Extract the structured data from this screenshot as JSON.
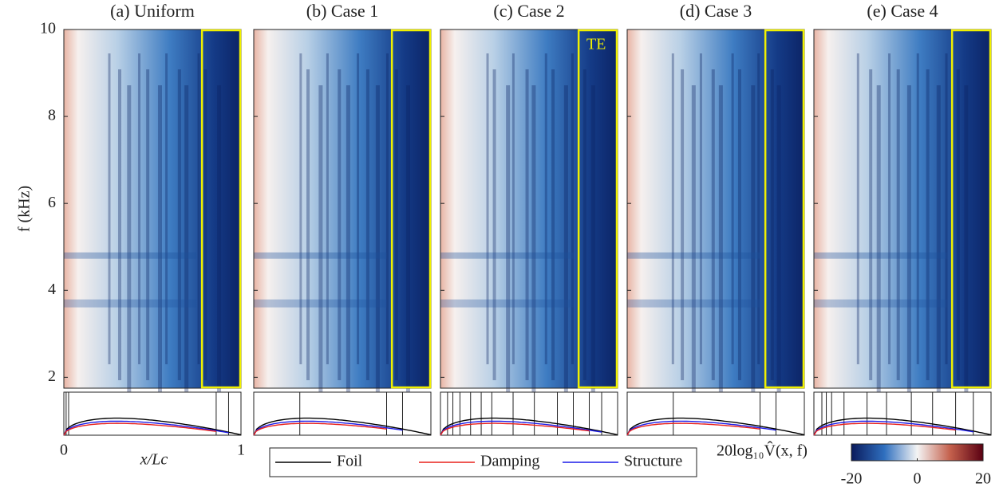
{
  "chart_data": {
    "type": "heatmap",
    "y_label": "f (kHz)",
    "x_label": "x/Lc",
    "xlim": [
      0,
      1
    ],
    "xticks": [
      0,
      1
    ],
    "ylim": [
      1.75,
      10
    ],
    "yticks": [
      2,
      4,
      6,
      8,
      10
    ],
    "te_region": [
      0.78,
      1
    ],
    "te_color": "#f0f000",
    "annotation": "TE",
    "panels": [
      {
        "title": "(a) Uniform",
        "boundaries": [
          0.013,
          0.027,
          0.86,
          0.93
        ]
      },
      {
        "title": "(b) Case 1",
        "boundaries": [
          0.26,
          0.75,
          0.84
        ]
      },
      {
        "title": "(c) Case 2",
        "boundaries": [
          0.04,
          0.07,
          0.11,
          0.17,
          0.23,
          0.29,
          0.41,
          0.53,
          0.66,
          0.75,
          0.84,
          0.91
        ]
      },
      {
        "title": "(d) Case 3",
        "boundaries": [
          0.26,
          0.75,
          0.84
        ]
      },
      {
        "title": "(e) Case 4",
        "boundaries": [
          0.045,
          0.07,
          0.1,
          0.17,
          0.3,
          0.41,
          0.55,
          0.67,
          0.8,
          0.9
        ]
      }
    ],
    "legend": [
      {
        "name": "Foil",
        "color": "#000000"
      },
      {
        "name": "Damping",
        "color": "#e8201c"
      },
      {
        "name": "Structure",
        "color": "#1c1ce8"
      }
    ],
    "colorbar": {
      "label": "20log₁₀V̂(x, f)",
      "clim": [
        -20,
        20
      ],
      "ticks": [
        -20,
        0,
        20
      ],
      "colors": [
        "#0a1a5c",
        "#2f6fbf",
        "#f4f4f4",
        "#c4604c",
        "#5a0012"
      ]
    }
  }
}
